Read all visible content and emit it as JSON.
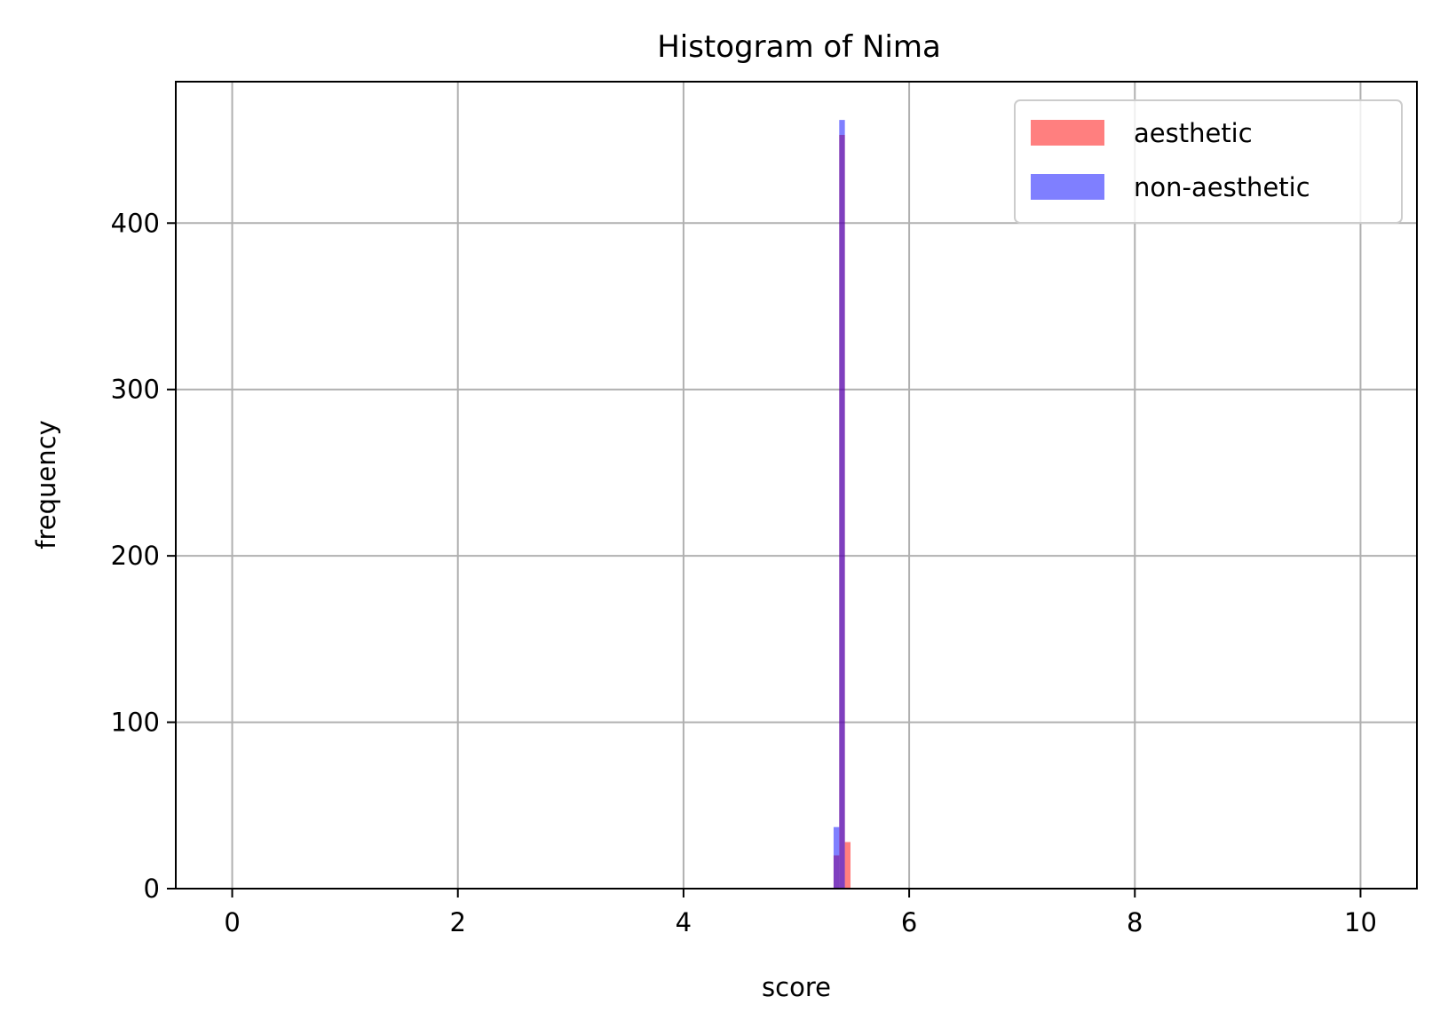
{
  "chart_data": {
    "type": "bar",
    "title": "Histogram of Nima",
    "xlabel": "score",
    "ylabel": "frequency",
    "xlim": [
      -0.5,
      10.5
    ],
    "ylim": [
      0,
      485
    ],
    "xticks": [
      0,
      2,
      4,
      6,
      8,
      10
    ],
    "yticks": [
      0,
      100,
      200,
      300,
      400
    ],
    "grid": true,
    "legend_position": "top-right",
    "series": [
      {
        "name": "aesthetic",
        "color": "#ff0000",
        "opacity": 0.5,
        "bins": [
          {
            "x0": 5.33,
            "x1": 5.38,
            "value": 20
          },
          {
            "x0": 5.38,
            "x1": 5.43,
            "value": 453
          },
          {
            "x0": 5.43,
            "x1": 5.48,
            "value": 28
          }
        ]
      },
      {
        "name": "non-aesthetic",
        "color": "#0000ff",
        "opacity": 0.5,
        "bins": [
          {
            "x0": 5.33,
            "x1": 5.38,
            "value": 37
          },
          {
            "x0": 5.38,
            "x1": 5.43,
            "value": 462
          }
        ]
      }
    ]
  }
}
